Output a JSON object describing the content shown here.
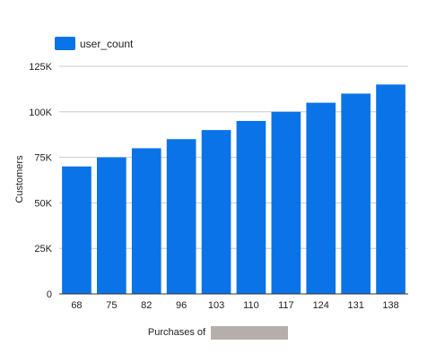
{
  "chart_data": {
    "type": "bar",
    "categories": [
      "68",
      "75",
      "82",
      "96",
      "103",
      "110",
      "117",
      "124",
      "131",
      "138"
    ],
    "series": [
      {
        "name": "user_count",
        "values": [
          70000,
          75000,
          80000,
          85000,
          90000,
          95000,
          100000,
          105000,
          110000,
          115000
        ],
        "color": "#0b73e8"
      }
    ],
    "title": "",
    "xlabel": "Purchases of",
    "xlabel_redacted": true,
    "ylabel": "Customers",
    "ylim": [
      0,
      125000
    ],
    "yticks": [
      0,
      25000,
      50000,
      75000,
      100000,
      125000
    ],
    "ytick_labels": [
      "0",
      "25K",
      "50K",
      "75K",
      "100K",
      "125K"
    ],
    "grid": true,
    "legend": "top-left"
  }
}
